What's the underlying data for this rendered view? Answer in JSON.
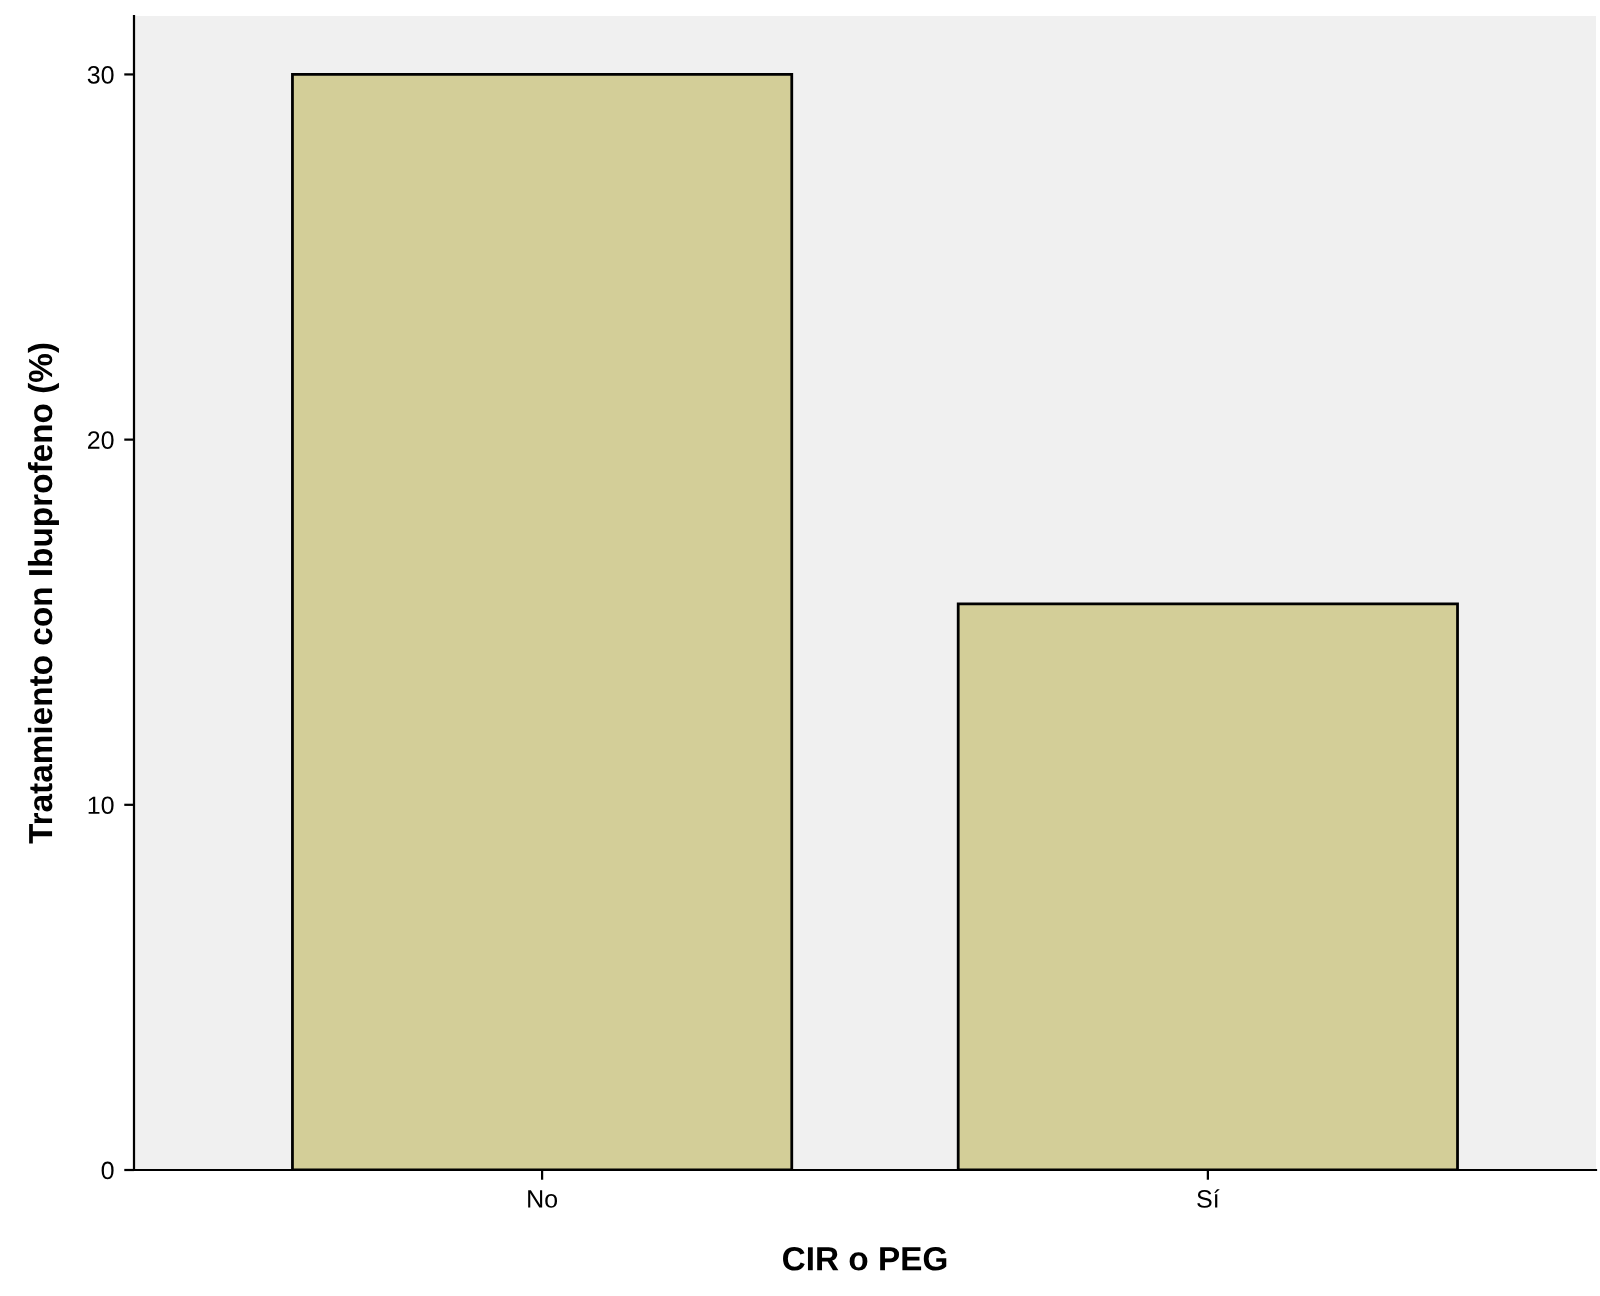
{
  "chart_data": {
    "type": "bar",
    "xlabel": "CIR o PEG",
    "ylabel": "Tratamiento con Ibuprofeno (%)",
    "categories": [
      "No",
      "Sí"
    ],
    "values": [
      30.0,
      15.5
    ],
    "color": "#d3ce98",
    "ylim": [
      0,
      31.6
    ],
    "yticks": [
      0,
      10,
      20,
      30
    ],
    "grid": false,
    "legend": false
  }
}
